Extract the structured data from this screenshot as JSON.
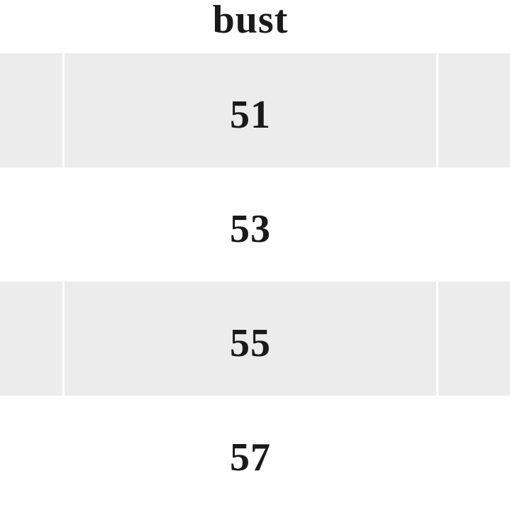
{
  "table": {
    "header": "bust",
    "rows": [
      "51",
      "53",
      "55",
      "57"
    ]
  },
  "colors": {
    "stripe": "#ececec",
    "text": "#1a1a1a",
    "background": "#ffffff"
  }
}
